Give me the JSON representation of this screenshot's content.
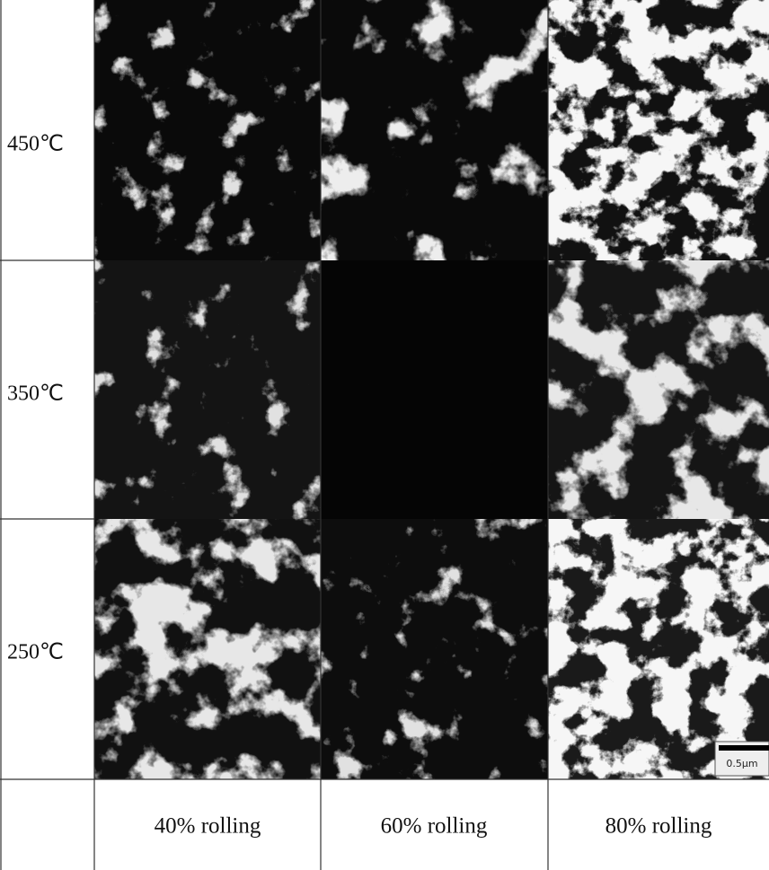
{
  "row_labels": [
    "450℃",
    "350℃",
    "250℃"
  ],
  "column_labels": [
    "40% rolling",
    "60% rolling",
    "80% rolling"
  ],
  "scale_bar": "0.5μm"
}
